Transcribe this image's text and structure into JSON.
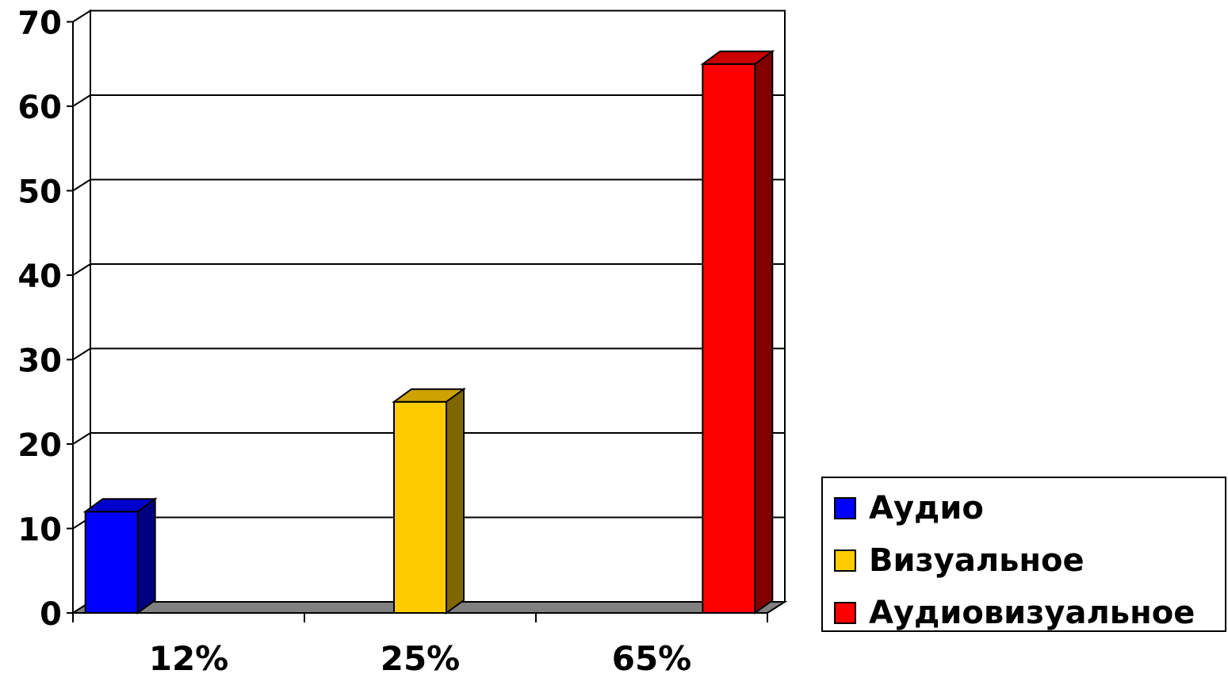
{
  "chart_data": {
    "type": "bar",
    "categories": [
      "12%",
      "25%",
      "65%"
    ],
    "series": [
      {
        "name": "Аудио",
        "values": [
          12,
          null,
          null
        ],
        "color": "#0000FF"
      },
      {
        "name": "Визуальное",
        "values": [
          null,
          25,
          null
        ],
        "color": "#FFCC00"
      },
      {
        "name": "Аудиовизуальное",
        "values": [
          null,
          null,
          65
        ],
        "color": "#FF0000"
      }
    ],
    "ylim": [
      0,
      70
    ],
    "yticks": [
      "0",
      "10",
      "20",
      "30",
      "40",
      "50",
      "60",
      "70"
    ],
    "grid": true,
    "legend_position": "right-bottom",
    "style": "3d-column"
  }
}
